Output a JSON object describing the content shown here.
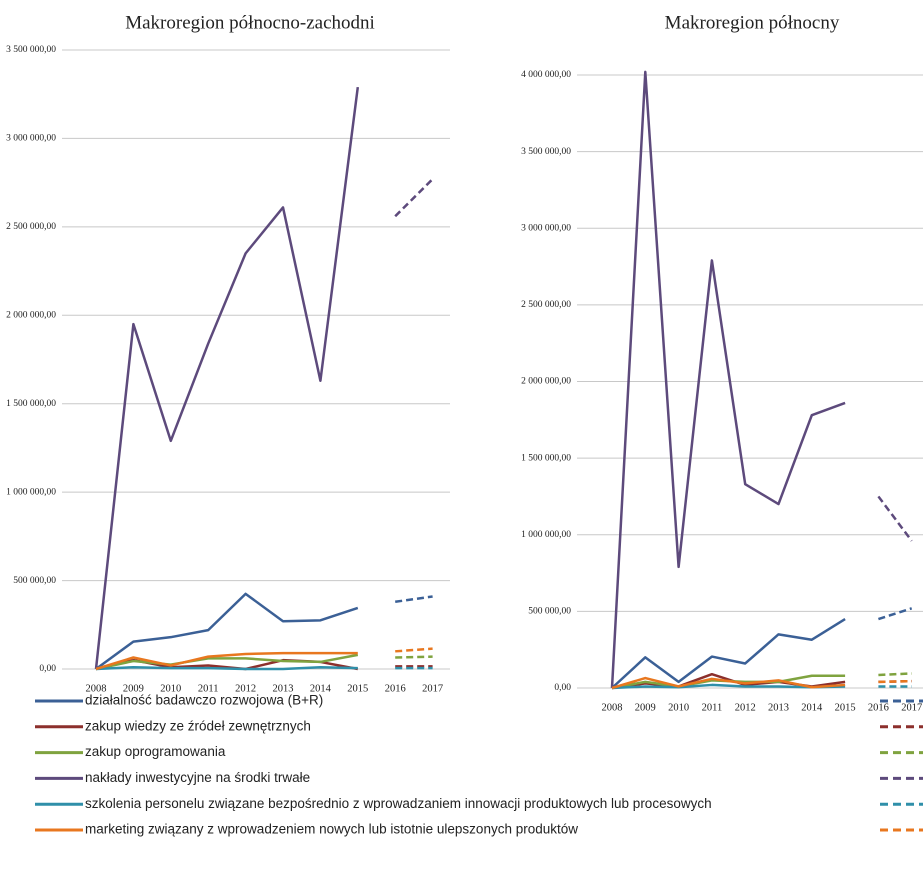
{
  "chart_data": [
    {
      "type": "line",
      "title": "Makroregion północno-zachodni",
      "categories": [
        "2008",
        "2009",
        "2010",
        "2011",
        "2012",
        "2013",
        "2014",
        "2015",
        "2016",
        "2017"
      ],
      "ylim": [
        0,
        3500000
      ],
      "yticks": [
        {
          "value": 0,
          "label": "0,00"
        },
        {
          "value": 500000,
          "label": "500 000,00"
        },
        {
          "value": 1000000,
          "label": "1 000 000,00"
        },
        {
          "value": 1500000,
          "label": "1 500 000,00"
        },
        {
          "value": 2000000,
          "label": "2 000 000,00"
        },
        {
          "value": 2500000,
          "label": "2 500 000,00"
        },
        {
          "value": 3000000,
          "label": "3 000 000,00"
        },
        {
          "value": 3500000,
          "label": "3 500 000,00"
        }
      ],
      "grid": true,
      "series": [
        {
          "name": "działalność badawczo  rozwojowa (B+R)",
          "color": "#3b6096",
          "values": [
            0,
            155000,
            180000,
            220000,
            425000,
            270000,
            275000,
            345000,
            null,
            null
          ],
          "forecast": [
            null,
            null,
            null,
            null,
            null,
            null,
            null,
            null,
            380000,
            410000
          ]
        },
        {
          "name": "zakup wiedzy ze źródeł zewnętrznych",
          "color": "#8c2f2c",
          "values": [
            0,
            50000,
            10000,
            20000,
            0,
            50000,
            40000,
            0,
            null,
            null
          ],
          "forecast": [
            null,
            null,
            null,
            null,
            null,
            null,
            null,
            null,
            15000,
            15000
          ]
        },
        {
          "name": "zakup oprogramowania",
          "color": "#7fa33f",
          "values": [
            0,
            45000,
            25000,
            60000,
            60000,
            45000,
            40000,
            80000,
            null,
            null
          ],
          "forecast": [
            null,
            null,
            null,
            null,
            null,
            null,
            null,
            null,
            65000,
            70000
          ]
        },
        {
          "name": "nakłady inwestycyjne na środki trwałe",
          "color": "#5d4a7c",
          "values": [
            0,
            1950000,
            1290000,
            1840000,
            2350000,
            2610000,
            1630000,
            3290000,
            null,
            null
          ],
          "forecast": [
            null,
            null,
            null,
            null,
            null,
            null,
            null,
            null,
            2560000,
            2770000
          ]
        },
        {
          "name": "szkolenia personelu związane  bezpośrednio z wprowadzaniem  innowacji produktowych lub procesowych",
          "color": "#2f8fa9",
          "values": [
            0,
            10000,
            5000,
            5000,
            0,
            0,
            10000,
            5000,
            null,
            null
          ],
          "forecast": [
            null,
            null,
            null,
            null,
            null,
            null,
            null,
            null,
            5000,
            5000
          ]
        },
        {
          "name": "marketing związany  z wprowadzeniem  nowych lub istotnie  ulepszonych produktów",
          "color": "#e8771f",
          "values": [
            0,
            65000,
            20000,
            70000,
            85000,
            90000,
            90000,
            90000,
            null,
            null
          ],
          "forecast": [
            null,
            null,
            null,
            null,
            null,
            null,
            null,
            null,
            100000,
            115000
          ]
        }
      ]
    },
    {
      "type": "line",
      "title": "Makroregion północny",
      "categories": [
        "2008",
        "2009",
        "2010",
        "2011",
        "2012",
        "2013",
        "2014",
        "2015",
        "2016",
        "2017"
      ],
      "ylim": [
        0,
        4000000
      ],
      "yticks": [
        {
          "value": 0,
          "label": "0,00"
        },
        {
          "value": 500000,
          "label": "500 000,00"
        },
        {
          "value": 1000000,
          "label": "1 000 000,00"
        },
        {
          "value": 1500000,
          "label": "1 500 000,00"
        },
        {
          "value": 2000000,
          "label": "2 000 000,00"
        },
        {
          "value": 2500000,
          "label": "2 500 000,00"
        },
        {
          "value": 3000000,
          "label": "3 000 000,00"
        },
        {
          "value": 3500000,
          "label": "3 500 000,00"
        },
        {
          "value": 4000000,
          "label": "4 000 000,00"
        }
      ],
      "grid": true,
      "series": [
        {
          "color": "#3b6096",
          "values": [
            0,
            200000,
            40000,
            205000,
            160000,
            350000,
            315000,
            450000,
            null,
            null
          ],
          "forecast": [
            null,
            null,
            null,
            null,
            null,
            null,
            null,
            null,
            450000,
            520000
          ]
        },
        {
          "color": "#8c2f2c",
          "values": [
            0,
            30000,
            10000,
            90000,
            20000,
            40000,
            10000,
            40000,
            null,
            null
          ],
          "forecast": [
            null,
            null,
            null,
            null,
            null,
            null,
            null,
            null,
            40000,
            45000
          ]
        },
        {
          "color": "#7fa33f",
          "values": [
            0,
            40000,
            10000,
            50000,
            40000,
            40000,
            80000,
            80000,
            null,
            null
          ],
          "forecast": [
            null,
            null,
            null,
            null,
            null,
            null,
            null,
            null,
            85000,
            95000
          ]
        },
        {
          "color": "#5d4a7c",
          "values": [
            0,
            4020000,
            790000,
            2790000,
            1330000,
            1200000,
            1780000,
            1860000,
            null,
            null
          ],
          "forecast": [
            null,
            null,
            null,
            null,
            null,
            null,
            null,
            null,
            1250000,
            960000
          ]
        },
        {
          "color": "#2f8fa9",
          "values": [
            0,
            10000,
            5000,
            20000,
            10000,
            10000,
            5000,
            10000,
            null,
            null
          ],
          "forecast": [
            null,
            null,
            null,
            null,
            null,
            null,
            null,
            null,
            10000,
            10000
          ]
        },
        {
          "color": "#e8771f",
          "values": [
            0,
            65000,
            10000,
            60000,
            30000,
            50000,
            5000,
            20000,
            null,
            null
          ],
          "forecast": [
            null,
            null,
            null,
            null,
            null,
            null,
            null,
            null,
            40000,
            45000
          ]
        }
      ]
    }
  ]
}
